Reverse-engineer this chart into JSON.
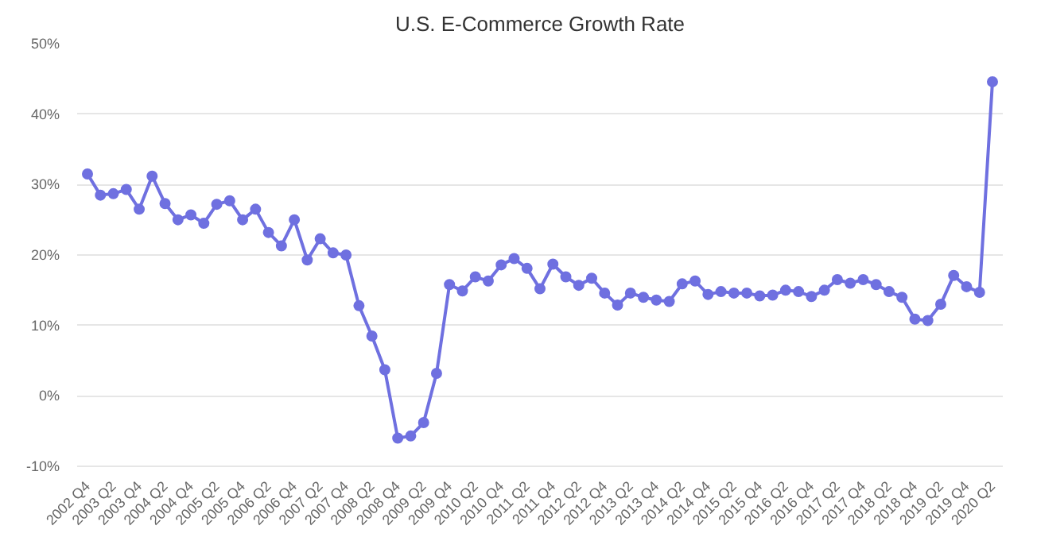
{
  "chart_data": {
    "type": "line",
    "title": "U.S. E-Commerce Growth Rate",
    "categories": [
      "2002 Q4",
      null,
      "2003 Q2",
      null,
      "2003 Q4",
      null,
      "2004 Q2",
      null,
      "2004 Q4",
      null,
      "2005 Q2",
      null,
      "2005 Q4",
      null,
      "2006 Q2",
      null,
      "2006 Q4",
      null,
      "2007 Q2",
      null,
      "2007 Q4",
      null,
      "2008 Q2",
      null,
      "2008 Q4",
      null,
      "2009 Q2",
      null,
      "2009 Q4",
      null,
      "2010 Q2",
      null,
      "2010 Q4",
      null,
      "2011 Q2",
      null,
      "2011 Q4",
      null,
      "2012 Q2",
      null,
      "2012 Q4",
      null,
      "2013 Q2",
      null,
      "2013 Q4",
      null,
      "2014 Q2",
      null,
      "2014 Q4",
      null,
      "2015 Q2",
      null,
      "2015 Q4",
      null,
      "2016 Q2",
      null,
      "2016 Q4",
      null,
      "2017 Q2",
      null,
      "2017 Q4",
      null,
      "2018 Q2",
      null,
      "2018 Q4",
      null,
      "2019 Q2",
      null,
      "2019 Q4",
      null,
      "2020 Q2"
    ],
    "series": [
      {
        "color": "#6f70e0",
        "values": [
          31.5,
          28.5,
          28.7,
          29.3,
          26.5,
          31.2,
          27.3,
          25,
          25.7,
          24.5,
          27.2,
          27.7,
          25,
          26.5,
          23.2,
          21.3,
          25,
          19.3,
          22.3,
          20.3,
          20,
          12.8,
          8.5,
          3.7,
          -6,
          -5.7,
          -3.8,
          3.2,
          15.8,
          14.9,
          16.9,
          16.3,
          18.6,
          19.5,
          18.1,
          15.2,
          18.7,
          16.9,
          15.7,
          16.7,
          14.6,
          12.9,
          14.6,
          14,
          13.6,
          13.4,
          15.9,
          16.3,
          14.4,
          14.8,
          14.6,
          14.6,
          14.2,
          14.3,
          15,
          14.8,
          14.1,
          15,
          16.5,
          16,
          16.5,
          15.8,
          14.8,
          14,
          10.9,
          10.7,
          13,
          17.1,
          15.5,
          14.7,
          44.6
        ]
      }
    ],
    "ylim": [
      -10,
      50
    ],
    "yticks": [
      {
        "value": -10,
        "label": "-10%"
      },
      {
        "value": 0,
        "label": "0%"
      },
      {
        "value": 10,
        "label": "10%"
      },
      {
        "value": 20,
        "label": "20%"
      },
      {
        "value": 30,
        "label": "30%"
      },
      {
        "value": 40,
        "label": "40%"
      },
      {
        "value": 50,
        "label": "50%"
      }
    ],
    "grid": "y",
    "marker": "circle",
    "line_style": "solid"
  }
}
